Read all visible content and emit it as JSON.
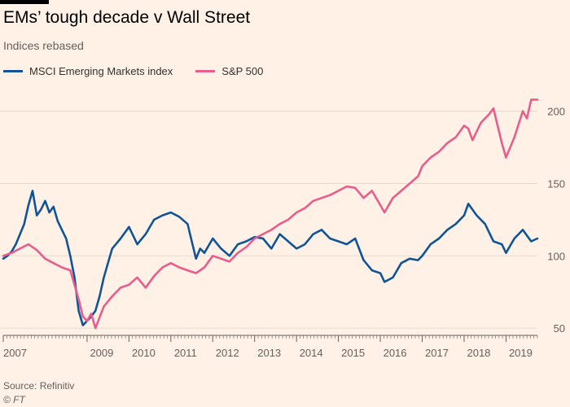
{
  "header": {
    "title": "EMs’ tough decade v Wall Street",
    "subtitle": "Indices rebased"
  },
  "footer": {
    "source": "Source: Refinitiv",
    "credit": "© FT"
  },
  "colors": {
    "background": "#fff1e5",
    "msci": "#0f5499",
    "sp500": "#e95d8c",
    "grid": "#e6d9ce",
    "axis": "#66605c"
  },
  "chart_data": {
    "type": "line",
    "title": "EMs’ tough decade v Wall Street",
    "subtitle": "Indices rebased",
    "xlabel": "",
    "ylabel": "",
    "xlim": [
      2007.0,
      2019.75
    ],
    "ylim": [
      45,
      215
    ],
    "y_ticks": [
      50,
      100,
      150,
      200
    ],
    "x_ticks": [
      2007,
      2009,
      2010,
      2011,
      2012,
      2013,
      2014,
      2015,
      2016,
      2017,
      2018,
      2019
    ],
    "grid": true,
    "legend_position": "top-left",
    "series": [
      {
        "name": "MSCI Emerging Markets index",
        "color": "#0f5499",
        "x": [
          2007.0,
          2007.1,
          2007.2,
          2007.3,
          2007.4,
          2007.5,
          2007.6,
          2007.7,
          2007.8,
          2007.9,
          2008.0,
          2008.1,
          2008.2,
          2008.3,
          2008.4,
          2008.5,
          2008.6,
          2008.7,
          2008.8,
          2008.9,
          2009.0,
          2009.1,
          2009.2,
          2009.3,
          2009.4,
          2009.5,
          2009.6,
          2009.8,
          2010.0,
          2010.2,
          2010.4,
          2010.6,
          2010.8,
          2011.0,
          2011.2,
          2011.4,
          2011.5,
          2011.6,
          2011.7,
          2011.8,
          2012.0,
          2012.2,
          2012.4,
          2012.6,
          2012.8,
          2013.0,
          2013.2,
          2013.4,
          2013.6,
          2013.8,
          2014.0,
          2014.2,
          2014.4,
          2014.6,
          2014.8,
          2015.0,
          2015.2,
          2015.4,
          2015.6,
          2015.8,
          2016.0,
          2016.1,
          2016.3,
          2016.5,
          2016.7,
          2016.9,
          2017.0,
          2017.2,
          2017.4,
          2017.6,
          2017.8,
          2018.0,
          2018.1,
          2018.3,
          2018.5,
          2018.7,
          2018.9,
          2019.0,
          2019.2,
          2019.4,
          2019.6,
          2019.75
        ],
        "values": [
          98,
          100,
          103,
          108,
          115,
          122,
          135,
          145,
          128,
          132,
          138,
          130,
          134,
          124,
          118,
          112,
          100,
          85,
          62,
          52,
          55,
          58,
          62,
          72,
          85,
          95,
          105,
          112,
          120,
          108,
          115,
          125,
          128,
          130,
          127,
          122,
          110,
          98,
          105,
          102,
          112,
          105,
          100,
          108,
          110,
          113,
          112,
          105,
          115,
          110,
          105,
          108,
          115,
          118,
          112,
          110,
          108,
          112,
          97,
          90,
          88,
          82,
          85,
          95,
          98,
          97,
          100,
          108,
          112,
          118,
          122,
          128,
          136,
          128,
          122,
          110,
          108,
          102,
          112,
          118,
          110,
          112
        ]
      },
      {
        "name": "S&P 500",
        "color": "#e95d8c",
        "x": [
          2007.0,
          2007.2,
          2007.4,
          2007.6,
          2007.8,
          2008.0,
          2008.2,
          2008.4,
          2008.6,
          2008.8,
          2008.9,
          2009.0,
          2009.1,
          2009.2,
          2009.4,
          2009.6,
          2009.8,
          2010.0,
          2010.2,
          2010.4,
          2010.6,
          2010.8,
          2011.0,
          2011.2,
          2011.4,
          2011.6,
          2011.8,
          2012.0,
          2012.2,
          2012.4,
          2012.6,
          2012.8,
          2013.0,
          2013.2,
          2013.4,
          2013.6,
          2013.8,
          2014.0,
          2014.2,
          2014.4,
          2014.6,
          2014.8,
          2015.0,
          2015.2,
          2015.4,
          2015.6,
          2015.8,
          2016.0,
          2016.1,
          2016.3,
          2016.5,
          2016.7,
          2016.9,
          2017.0,
          2017.2,
          2017.4,
          2017.6,
          2017.8,
          2018.0,
          2018.1,
          2018.2,
          2018.4,
          2018.6,
          2018.7,
          2018.8,
          2018.9,
          2019.0,
          2019.2,
          2019.4,
          2019.5,
          2019.6,
          2019.75
        ],
        "values": [
          100,
          102,
          105,
          108,
          104,
          98,
          95,
          92,
          90,
          70,
          58,
          55,
          60,
          50,
          65,
          72,
          78,
          80,
          85,
          78,
          86,
          92,
          95,
          92,
          90,
          88,
          92,
          100,
          98,
          96,
          102,
          106,
          112,
          115,
          118,
          122,
          125,
          130,
          133,
          138,
          140,
          142,
          145,
          148,
          147,
          140,
          145,
          135,
          130,
          140,
          145,
          150,
          155,
          162,
          168,
          172,
          178,
          182,
          190,
          188,
          180,
          192,
          198,
          202,
          190,
          178,
          168,
          182,
          200,
          195,
          208,
          208
        ]
      }
    ]
  }
}
